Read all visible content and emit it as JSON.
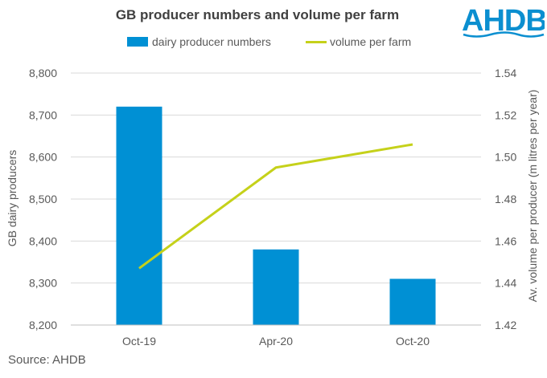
{
  "chart_data": {
    "type": "bar",
    "title": "GB producer numbers and volume per farm",
    "categories": [
      "Oct-19",
      "Apr-20",
      "Oct-20"
    ],
    "series": [
      {
        "name": "dairy producer numbers",
        "type": "bar",
        "axis": "left",
        "color": "#0090d4",
        "values": [
          8720,
          8380,
          8310
        ]
      },
      {
        "name": "volume per farm",
        "type": "line",
        "axis": "right",
        "color": "#c5d11a",
        "values": [
          1.447,
          1.495,
          1.506
        ]
      }
    ],
    "y_left": {
      "label": "GB dairy producers",
      "ylim": [
        8200,
        8800
      ],
      "ticks": [
        "8,200",
        "8,300",
        "8,400",
        "8,500",
        "8,600",
        "8,700",
        "8,800"
      ]
    },
    "y_right": {
      "label": "Av. volume per producer (m litres per year)",
      "ylim": [
        1.42,
        1.54
      ],
      "ticks": [
        "1.42",
        "1.44",
        "1.46",
        "1.48",
        "1.50",
        "1.52",
        "1.54"
      ]
    },
    "grid": true,
    "legend": "top"
  },
  "logo_text": "AHDB",
  "source": "Source: AHDB"
}
